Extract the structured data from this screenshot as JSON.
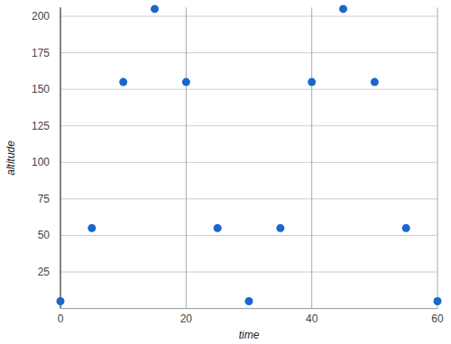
{
  "chart_data": {
    "type": "scatter",
    "x_label": "time",
    "y_label": "altitude",
    "x": [
      0,
      5,
      10,
      15,
      20,
      25,
      30,
      35,
      40,
      45,
      50,
      55,
      60
    ],
    "values": [
      5,
      55,
      155,
      205,
      155,
      55,
      5,
      55,
      155,
      205,
      155,
      55,
      5
    ],
    "color": "#1a66cc",
    "marker": "circle",
    "xlim": [
      0,
      60
    ],
    "xticks": [
      0,
      20,
      40,
      60
    ],
    "ylim": [
      0,
      206
    ],
    "yticks": [
      25,
      50,
      75,
      100,
      125,
      150,
      175,
      200
    ],
    "grid": true
  }
}
